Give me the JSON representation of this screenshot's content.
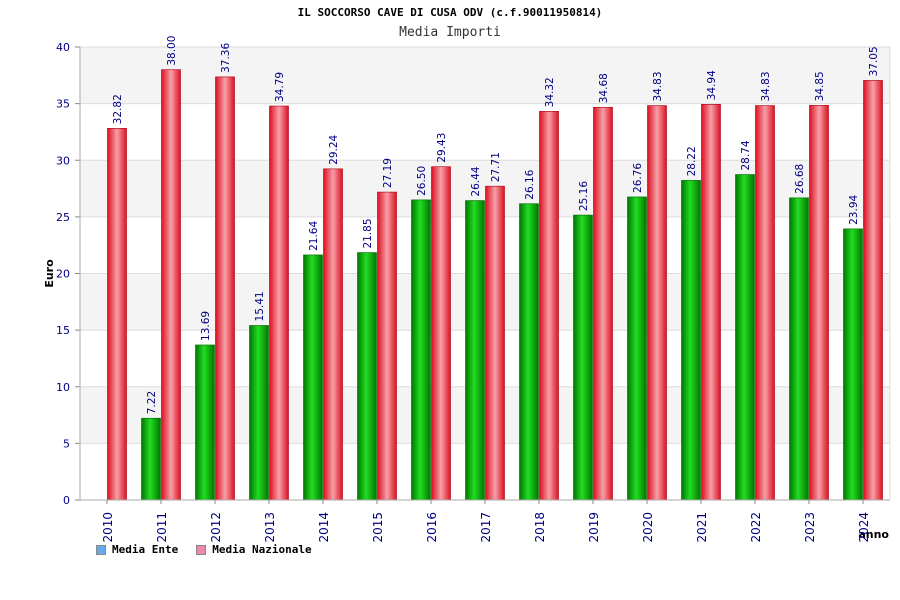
{
  "chart_data": {
    "type": "bar",
    "title": "IL SOCCORSO CAVE DI CUSA ODV (c.f.90011950814)",
    "subtitle": "Media Importi",
    "xlabel": "anno",
    "ylabel": "Euro",
    "ylim": [
      0,
      40
    ],
    "yticks": [
      0,
      5,
      10,
      15,
      20,
      25,
      30,
      35,
      40
    ],
    "categories": [
      "2010",
      "2011",
      "2012",
      "2013",
      "2014",
      "2015",
      "2016",
      "2017",
      "2018",
      "2019",
      "2020",
      "2021",
      "2022",
      "2023",
      "2024"
    ],
    "series": [
      {
        "name": "Media Ente",
        "color": "#00aa00",
        "values": [
          null,
          7.22,
          13.69,
          15.41,
          21.64,
          21.85,
          26.5,
          26.44,
          26.16,
          25.16,
          26.76,
          28.22,
          28.74,
          26.68,
          23.94
        ],
        "labels": [
          "",
          "7.22",
          "13.69",
          "15.41",
          "21.64",
          "21.85",
          "26.50",
          "26.44",
          "26.16",
          "25.16",
          "26.76",
          "28.22",
          "28.74",
          "26.68",
          "23.94"
        ]
      },
      {
        "name": "Media Nazionale",
        "color": "#ee2233",
        "values": [
          32.82,
          38.0,
          37.36,
          34.79,
          29.24,
          27.19,
          29.43,
          27.71,
          34.32,
          34.68,
          34.83,
          34.94,
          34.83,
          34.85,
          37.05
        ],
        "labels": [
          "32.82",
          "38.00",
          "37.36",
          "34.79",
          "29.24",
          "27.19",
          "29.43",
          "27.71",
          "34.32",
          "34.68",
          "34.83",
          "34.94",
          "34.83",
          "34.85",
          "37.05"
        ]
      }
    ],
    "legend": {
      "position": "bottom-left",
      "swatch_colors": [
        "#66aaee",
        "#ee88aa"
      ]
    },
    "grid": true,
    "band_colors": [
      "#f4f4f4",
      "#ffffff"
    ]
  }
}
